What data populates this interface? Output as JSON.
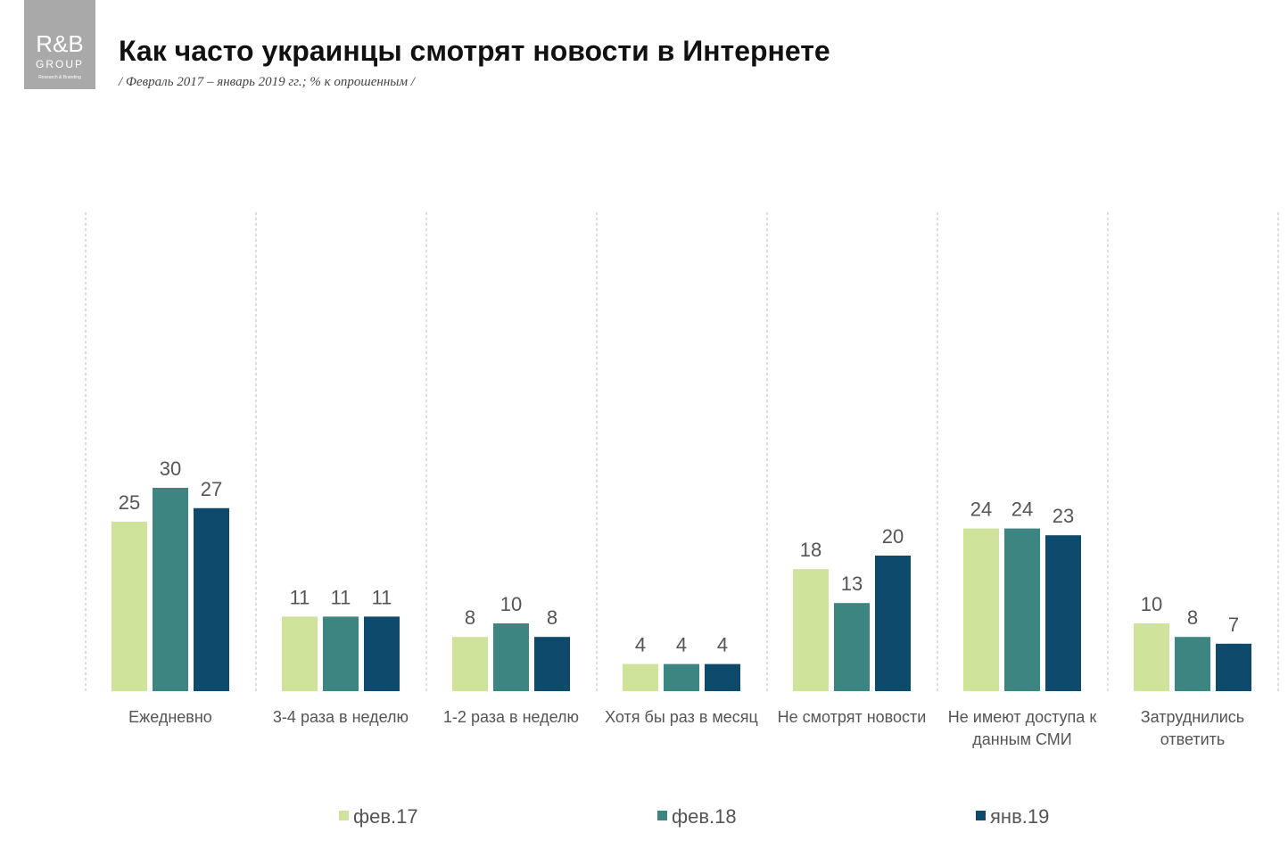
{
  "logo": {
    "name": "R&B",
    "group": "GROUP",
    "tagline": "Research & Branding"
  },
  "chart_data": {
    "type": "bar",
    "title": "Как часто украинцы смотрят новости в Интернете",
    "subtitle": "/ Февраль 2017 – январь 2019 гг.; % к опрошенным /",
    "categories": [
      "Ежедневно",
      "3-4 раза в неделю",
      "1-2 раза в неделю",
      "Хотя бы раз в месяц",
      "Не смотрят новости",
      "Не имеют доступа к данным СМИ",
      "Затруднились ответить"
    ],
    "series": [
      {
        "name": "фев.17",
        "color": "#cfe39a",
        "values": [
          25,
          11,
          8,
          4,
          18,
          24,
          10
        ]
      },
      {
        "name": "фев.18",
        "color": "#3d8580",
        "values": [
          30,
          11,
          10,
          4,
          13,
          24,
          8
        ]
      },
      {
        "name": "янв.19",
        "color": "#0d4a6b",
        "values": [
          27,
          11,
          8,
          4,
          20,
          23,
          7
        ]
      }
    ],
    "legend": "bottom"
  }
}
